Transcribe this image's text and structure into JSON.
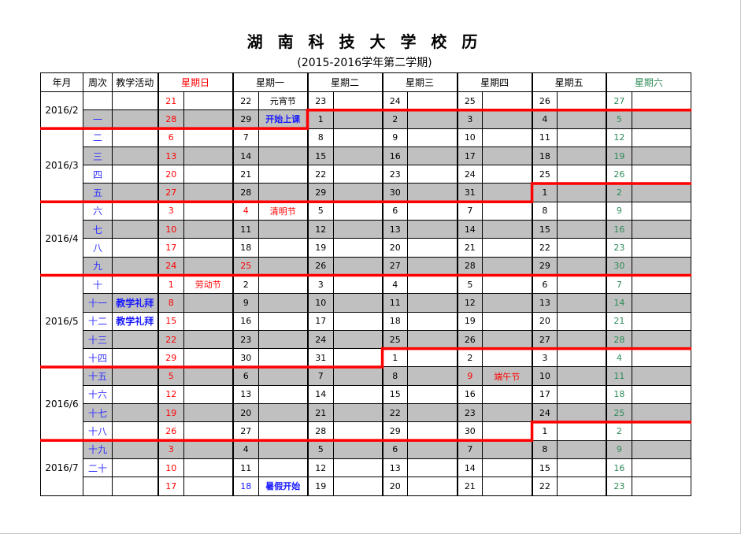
{
  "title": "湖 南 科 技 大 学 校 历",
  "subtitle": "(2015-2016学年第二学期)",
  "headers": {
    "month": "年月",
    "week": "周次",
    "activity": "教学活动",
    "days": [
      "星期日",
      "星期一",
      "星期二",
      "星期三",
      "星期四",
      "星期五",
      "星期六"
    ]
  },
  "colors": {
    "sunday": "#ff0000",
    "saturday": "#2e8b57",
    "week_number": "#3333ff",
    "boundary": "#ff0000",
    "shaded_row": "#c0c0c0"
  },
  "months": [
    {
      "label": "2016/2",
      "rows": 2
    },
    {
      "label": "2016/3",
      "rows": 4
    },
    {
      "label": "2016/4",
      "rows": 4
    },
    {
      "label": "2016/5",
      "rows": 5
    },
    {
      "label": "2016/6",
      "rows": 4
    },
    {
      "label": "2016/7",
      "rows": 3
    }
  ],
  "rows": [
    {
      "week": "",
      "activity": "",
      "shaded": false,
      "days": [
        "21",
        "22",
        "23",
        "24",
        "25",
        "26",
        "27"
      ],
      "notes": {
        "1": {
          "text": "元宵节",
          "color": "black"
        }
      }
    },
    {
      "week": "一",
      "activity": "",
      "shaded": true,
      "days": [
        "28",
        "29",
        "1",
        "2",
        "3",
        "4",
        "5"
      ],
      "notes": {
        "1": {
          "text": "开始上课",
          "color": "blue"
        }
      }
    },
    {
      "week": "二",
      "activity": "",
      "shaded": false,
      "days": [
        "6",
        "7",
        "8",
        "9",
        "10",
        "11",
        "12"
      ]
    },
    {
      "week": "三",
      "activity": "",
      "shaded": true,
      "days": [
        "13",
        "14",
        "15",
        "16",
        "17",
        "18",
        "19"
      ]
    },
    {
      "week": "四",
      "activity": "",
      "shaded": false,
      "days": [
        "20",
        "21",
        "22",
        "23",
        "24",
        "25",
        "26"
      ]
    },
    {
      "week": "五",
      "activity": "",
      "shaded": true,
      "days": [
        "27",
        "28",
        "29",
        "30",
        "31",
        "1",
        "2"
      ]
    },
    {
      "week": "六",
      "activity": "",
      "shaded": false,
      "days": [
        "3",
        "4",
        "5",
        "6",
        "7",
        "8",
        "9"
      ],
      "notes": {
        "1": {
          "text": "清明节",
          "color": "red"
        }
      },
      "day_colors": {
        "1": "red"
      }
    },
    {
      "week": "七",
      "activity": "",
      "shaded": true,
      "days": [
        "10",
        "11",
        "12",
        "13",
        "14",
        "15",
        "16"
      ]
    },
    {
      "week": "八",
      "activity": "",
      "shaded": false,
      "days": [
        "17",
        "18",
        "19",
        "20",
        "21",
        "22",
        "23"
      ]
    },
    {
      "week": "九",
      "activity": "",
      "shaded": true,
      "days": [
        "24",
        "25",
        "26",
        "27",
        "28",
        "29",
        "30"
      ],
      "day_colors": {
        "1": "red"
      }
    },
    {
      "week": "十",
      "activity": "",
      "shaded": false,
      "days": [
        "1",
        "2",
        "3",
        "4",
        "5",
        "6",
        "7"
      ],
      "notes": {
        "0": {
          "text": "劳动节",
          "color": "red"
        }
      }
    },
    {
      "week": "十一",
      "activity": "教学礼拜",
      "shaded": true,
      "days": [
        "8",
        "9",
        "10",
        "11",
        "12",
        "13",
        "14"
      ]
    },
    {
      "week": "十二",
      "activity": "教学礼拜",
      "shaded": false,
      "days": [
        "15",
        "16",
        "17",
        "18",
        "19",
        "20",
        "21"
      ]
    },
    {
      "week": "十三",
      "activity": "",
      "shaded": true,
      "days": [
        "22",
        "23",
        "24",
        "25",
        "26",
        "27",
        "28"
      ]
    },
    {
      "week": "十四",
      "activity": "",
      "shaded": false,
      "days": [
        "29",
        "30",
        "31",
        "1",
        "2",
        "3",
        "4"
      ]
    },
    {
      "week": "十五",
      "activity": "",
      "shaded": true,
      "days": [
        "5",
        "6",
        "7",
        "8",
        "9",
        "10",
        "11"
      ],
      "notes": {
        "4": {
          "text": "端午节",
          "color": "red"
        }
      },
      "day_colors": {
        "4": "red"
      }
    },
    {
      "week": "十六",
      "activity": "",
      "shaded": false,
      "days": [
        "12",
        "13",
        "14",
        "15",
        "16",
        "17",
        "18"
      ]
    },
    {
      "week": "十七",
      "activity": "",
      "shaded": true,
      "days": [
        "19",
        "20",
        "21",
        "22",
        "23",
        "24",
        "25"
      ]
    },
    {
      "week": "十八",
      "activity": "",
      "shaded": false,
      "days": [
        "26",
        "27",
        "28",
        "29",
        "30",
        "1",
        "2"
      ]
    },
    {
      "week": "十九",
      "activity": "",
      "shaded": true,
      "days": [
        "3",
        "4",
        "5",
        "6",
        "7",
        "8",
        "9"
      ]
    },
    {
      "week": "二十",
      "activity": "",
      "shaded": false,
      "days": [
        "10",
        "11",
        "12",
        "13",
        "14",
        "15",
        "16"
      ]
    },
    {
      "week": "",
      "activity": "",
      "shaded": false,
      "days": [
        "17",
        "18",
        "19",
        "20",
        "21",
        "22",
        "23"
      ],
      "notes": {
        "1": {
          "text": "暑假开始",
          "color": "blue"
        }
      },
      "day_colors": {
        "1": "blue"
      }
    }
  ],
  "month_boundaries": [
    {
      "after_row": 1,
      "step_day": 2
    },
    {
      "after_row": 5,
      "step_day": 5
    },
    {
      "after_row": 9,
      "step_day": null
    },
    {
      "after_row": 14,
      "step_day": 3
    },
    {
      "after_row": 18,
      "step_day": 5
    }
  ]
}
